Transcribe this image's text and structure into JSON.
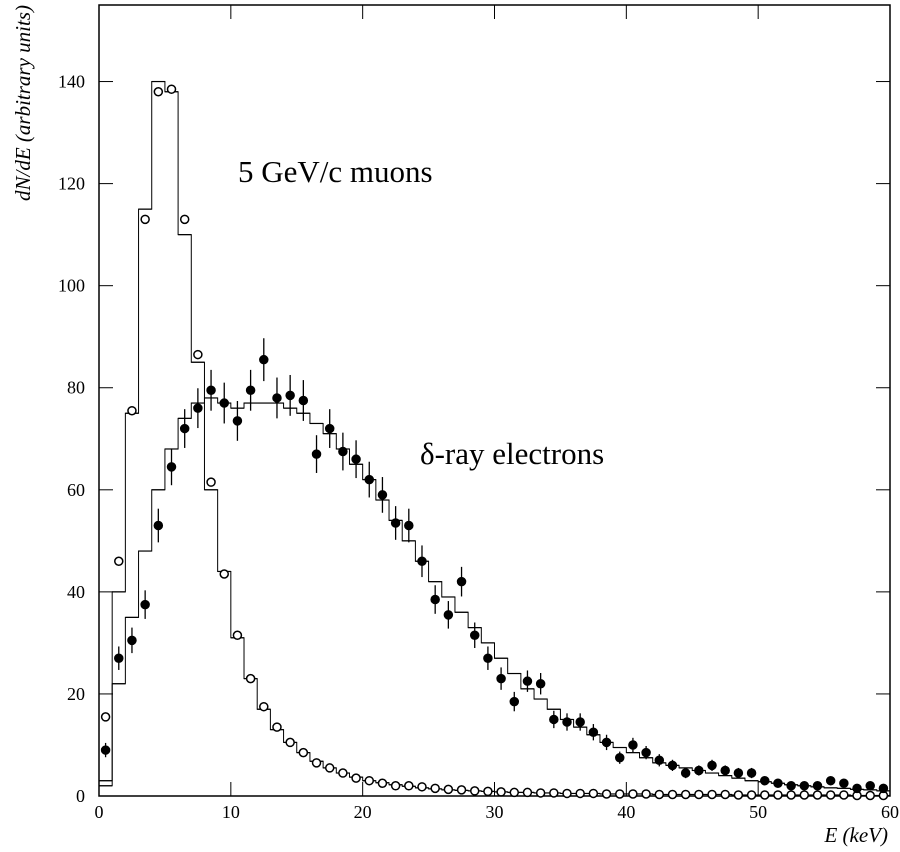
{
  "chart_data": {
    "type": "histogram",
    "xlabel": "E (keV)",
    "ylabel": "dN/dE (arbitrary units)",
    "annotations": [
      "5 GeV/c muons",
      "δ-ray electrons"
    ],
    "xlim": [
      0,
      60
    ],
    "ylim": [
      0,
      155
    ],
    "xticks": [
      0,
      10,
      20,
      30,
      40,
      50,
      60
    ],
    "yticks": [
      0,
      20,
      40,
      60,
      80,
      100,
      120,
      140
    ],
    "bins": [
      0,
      1,
      2,
      3,
      4,
      5,
      6,
      7,
      8,
      9,
      10,
      11,
      12,
      13,
      14,
      15,
      16,
      17,
      18,
      19,
      20,
      21,
      22,
      23,
      24,
      25,
      26,
      27,
      28,
      29,
      30,
      31,
      32,
      33,
      34,
      35,
      36,
      37,
      38,
      39,
      40,
      41,
      42,
      43,
      44,
      45,
      46,
      47,
      48,
      49,
      50,
      51,
      52,
      53,
      54,
      55,
      56,
      57,
      58,
      59,
      60
    ],
    "series": [
      {
        "color": "#000000",
        "values": [
          2,
          40,
          75,
          115,
          140,
          138,
          110,
          85,
          60,
          44,
          31,
          23,
          17,
          13,
          10.5,
          8.5,
          6.8,
          5.5,
          4.5,
          3.7,
          3,
          2.6,
          2.2,
          1.9,
          1.6,
          1.4,
          1.2,
          1.1,
          1,
          0.9,
          0.8,
          0.7,
          0.7,
          0.6,
          0.6,
          0.5,
          0.5,
          0.5,
          0.4,
          0.4,
          0.4,
          0.4,
          0.3,
          0.3,
          0.3,
          0.3,
          0.3,
          0.3,
          0.2,
          0.2,
          0.2,
          0.2,
          0.2,
          0.2,
          0.2,
          0.2,
          0.2,
          0.1,
          0.1,
          0.1
        ]
      },
      {
        "color": "#000000",
        "values": [
          3,
          22,
          35,
          48,
          60,
          68,
          74,
          77,
          78,
          77,
          76,
          77,
          77,
          77,
          76,
          75,
          73,
          71,
          68,
          65,
          62,
          58,
          54,
          50,
          46,
          42,
          39,
          36,
          33,
          30,
          27,
          24,
          21,
          19,
          17,
          15,
          13.5,
          12,
          10.5,
          9.5,
          8.5,
          7.5,
          6.5,
          6,
          5.5,
          5,
          4.5,
          4,
          3.5,
          3,
          2.8,
          2.5,
          2.2,
          2,
          1.8,
          1.6,
          1.5,
          1.3,
          1.2,
          1
        ]
      }
    ],
    "points": [
      {
        "marker": "open",
        "color": "#000000",
        "x": [
          0.5,
          1.5,
          2.5,
          3.5,
          4.5,
          5.5,
          6.5,
          7.5,
          8.5,
          9.5,
          10.5,
          11.5,
          12.5,
          13.5,
          14.5,
          15.5,
          16.5,
          17.5,
          18.5,
          19.5,
          20.5,
          21.5,
          22.5,
          23.5,
          24.5,
          25.5,
          26.5,
          27.5,
          28.5,
          29.5,
          30.5,
          31.5,
          32.5,
          33.5,
          34.5,
          35.5,
          36.5,
          37.5,
          38.5,
          39.5,
          40.5,
          41.5,
          42.5,
          43.5,
          44.5,
          45.5,
          46.5,
          47.5,
          48.5,
          49.5,
          50.5,
          51.5,
          52.5,
          53.5,
          54.5,
          55.5,
          56.5,
          57.5,
          58.5,
          59.5
        ],
        "values": [
          15.5,
          46,
          75.5,
          113,
          138,
          138.5,
          113,
          86.5,
          61.5,
          43.5,
          31.5,
          23,
          17.5,
          13.5,
          10.5,
          8.5,
          6.5,
          5.5,
          4.5,
          3.5,
          3,
          2.5,
          2,
          2,
          1.8,
          1.5,
          1.3,
          1.2,
          1,
          0.9,
          0.8,
          0.7,
          0.7,
          0.6,
          0.6,
          0.5,
          0.5,
          0.5,
          0.4,
          0.4,
          0.4,
          0.4,
          0.3,
          0.3,
          0.3,
          0.3,
          0.3,
          0.3,
          0.2,
          0.2,
          0.2,
          0.2,
          0.2,
          0.2,
          0.2,
          0.2,
          0.2,
          0.1,
          0.1,
          0.1
        ]
      },
      {
        "marker": "filled",
        "color": "#000000",
        "x": [
          0.5,
          1.5,
          2.5,
          3.5,
          4.5,
          5.5,
          6.5,
          7.5,
          8.5,
          9.5,
          10.5,
          11.5,
          12.5,
          13.5,
          14.5,
          15.5,
          16.5,
          17.5,
          18.5,
          19.5,
          20.5,
          21.5,
          22.5,
          23.5,
          24.5,
          25.5,
          26.5,
          27.5,
          28.5,
          29.5,
          30.5,
          31.5,
          32.5,
          33.5,
          34.5,
          35.5,
          36.5,
          37.5,
          38.5,
          39.5,
          40.5,
          41.5,
          42.5,
          43.5,
          44.5,
          45.5,
          46.5,
          47.5,
          48.5,
          49.5,
          50.5,
          51.5,
          52.5,
          53.5,
          54.5,
          55.5,
          56.5,
          57.5,
          58.5,
          59.5
        ],
        "values": [
          9,
          27,
          30.5,
          37.5,
          53,
          64.5,
          72,
          76,
          79.5,
          77,
          73.5,
          79.5,
          85.5,
          78,
          78.5,
          77.5,
          67,
          72,
          67.5,
          66,
          62,
          59,
          53.5,
          53,
          46,
          38.5,
          35.5,
          42,
          31.5,
          27,
          23,
          18.5,
          22.5,
          22,
          15,
          14.5,
          14.5,
          12.5,
          10.5,
          7.5,
          10,
          8.5,
          7,
          6,
          4.5,
          5,
          6,
          5,
          4.5,
          4.5,
          3,
          2.5,
          2,
          2,
          2,
          3,
          2.5,
          1.5,
          2,
          1.5
        ],
        "errors": [
          1.4,
          2.3,
          2.5,
          2.8,
          3.3,
          3.6,
          3.8,
          3.9,
          4,
          4,
          3.9,
          4,
          4.2,
          4,
          4,
          4,
          3.7,
          3.8,
          3.7,
          3.7,
          3.5,
          3.5,
          3.3,
          3.3,
          3.1,
          2.8,
          2.7,
          2.9,
          2.5,
          2.3,
          2.2,
          1.9,
          2.1,
          2.1,
          1.7,
          1.7,
          1.7,
          1.6,
          1.5,
          1.2,
          1.4,
          1.3,
          1.2,
          1.1,
          1,
          1,
          1.1,
          1,
          1,
          1,
          0.8,
          0.7,
          0.6,
          0.6,
          0.6,
          0.8,
          0.7,
          0.6,
          0.6,
          0.6
        ]
      }
    ]
  }
}
